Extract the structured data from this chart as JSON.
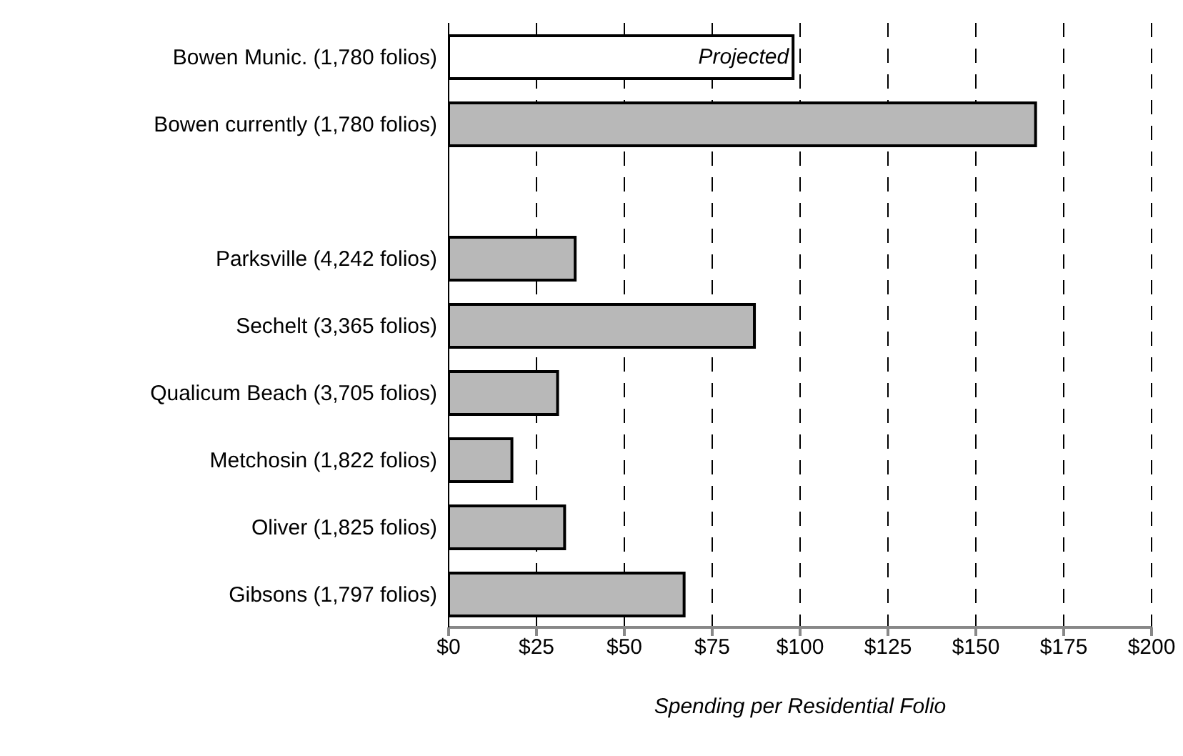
{
  "chart_data": {
    "type": "bar",
    "orientation": "horizontal",
    "xlabel": "Spending per Residential Folio",
    "categories": [
      "Bowen Munic. (1,780 folios)",
      "Bowen currently (1,780 folios)",
      null,
      "Parksville (4,242 folios)",
      "Sechelt (3,365 folios)",
      "Qualicum Beach (3,705 folios)",
      "Metchosin (1,822 folios)",
      "Oliver (1,825 folios)",
      "Gibsons (1,797 folios)"
    ],
    "values": [
      98,
      167,
      null,
      36,
      87,
      31,
      18,
      33,
      67
    ],
    "colors": [
      "#ffffff",
      "#b8b8b8",
      null,
      "#b8b8b8",
      "#b8b8b8",
      "#b8b8b8",
      "#b8b8b8",
      "#b8b8b8",
      "#b8b8b8"
    ],
    "xlim": [
      0,
      200
    ],
    "xticks": [
      {
        "value": 0,
        "label": "$0"
      },
      {
        "value": 25,
        "label": "$25"
      },
      {
        "value": 50,
        "label": "$50"
      },
      {
        "value": 75,
        "label": "$75"
      },
      {
        "value": 100,
        "label": "$100"
      },
      {
        "value": 125,
        "label": "$125"
      },
      {
        "value": 150,
        "label": "$150"
      },
      {
        "value": 175,
        "label": "$175"
      },
      {
        "value": 200,
        "label": "$200"
      }
    ],
    "grid": "x",
    "legend": false,
    "annotations": [
      {
        "text": "Projected",
        "x": 98,
        "y": "Bowen Munic. (1,780 folios)"
      }
    ]
  }
}
